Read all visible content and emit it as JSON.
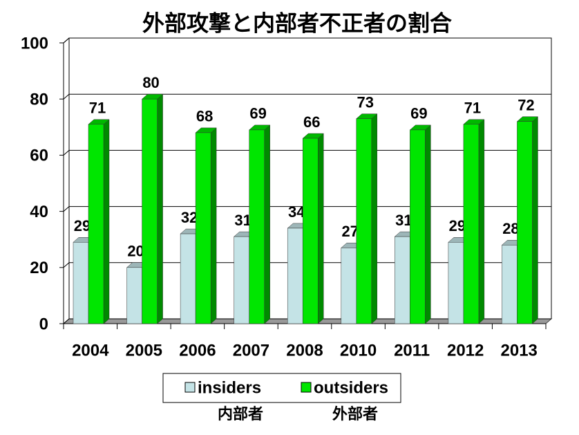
{
  "chart_data": {
    "type": "bar3d",
    "title": "外部攻撃と内部者不正者の割合",
    "categories": [
      "2004",
      "2005",
      "2006",
      "2007",
      "2008",
      "2010",
      "2011",
      "2012",
      "2013"
    ],
    "series": [
      {
        "name": "insiders",
        "color": "#c4e3e6",
        "values": [
          29,
          20,
          32,
          31,
          34,
          27,
          31,
          29,
          28
        ]
      },
      {
        "name": "outsiders",
        "color": "#00e600",
        "values": [
          71,
          80,
          68,
          69,
          66,
          73,
          69,
          71,
          72
        ]
      }
    ],
    "legend_notes": [
      "内部者",
      "外部者"
    ],
    "ylim": [
      0,
      100
    ],
    "yticks": [
      0,
      20,
      40,
      60,
      80,
      100
    ],
    "grid": true,
    "legend": "bottom"
  }
}
